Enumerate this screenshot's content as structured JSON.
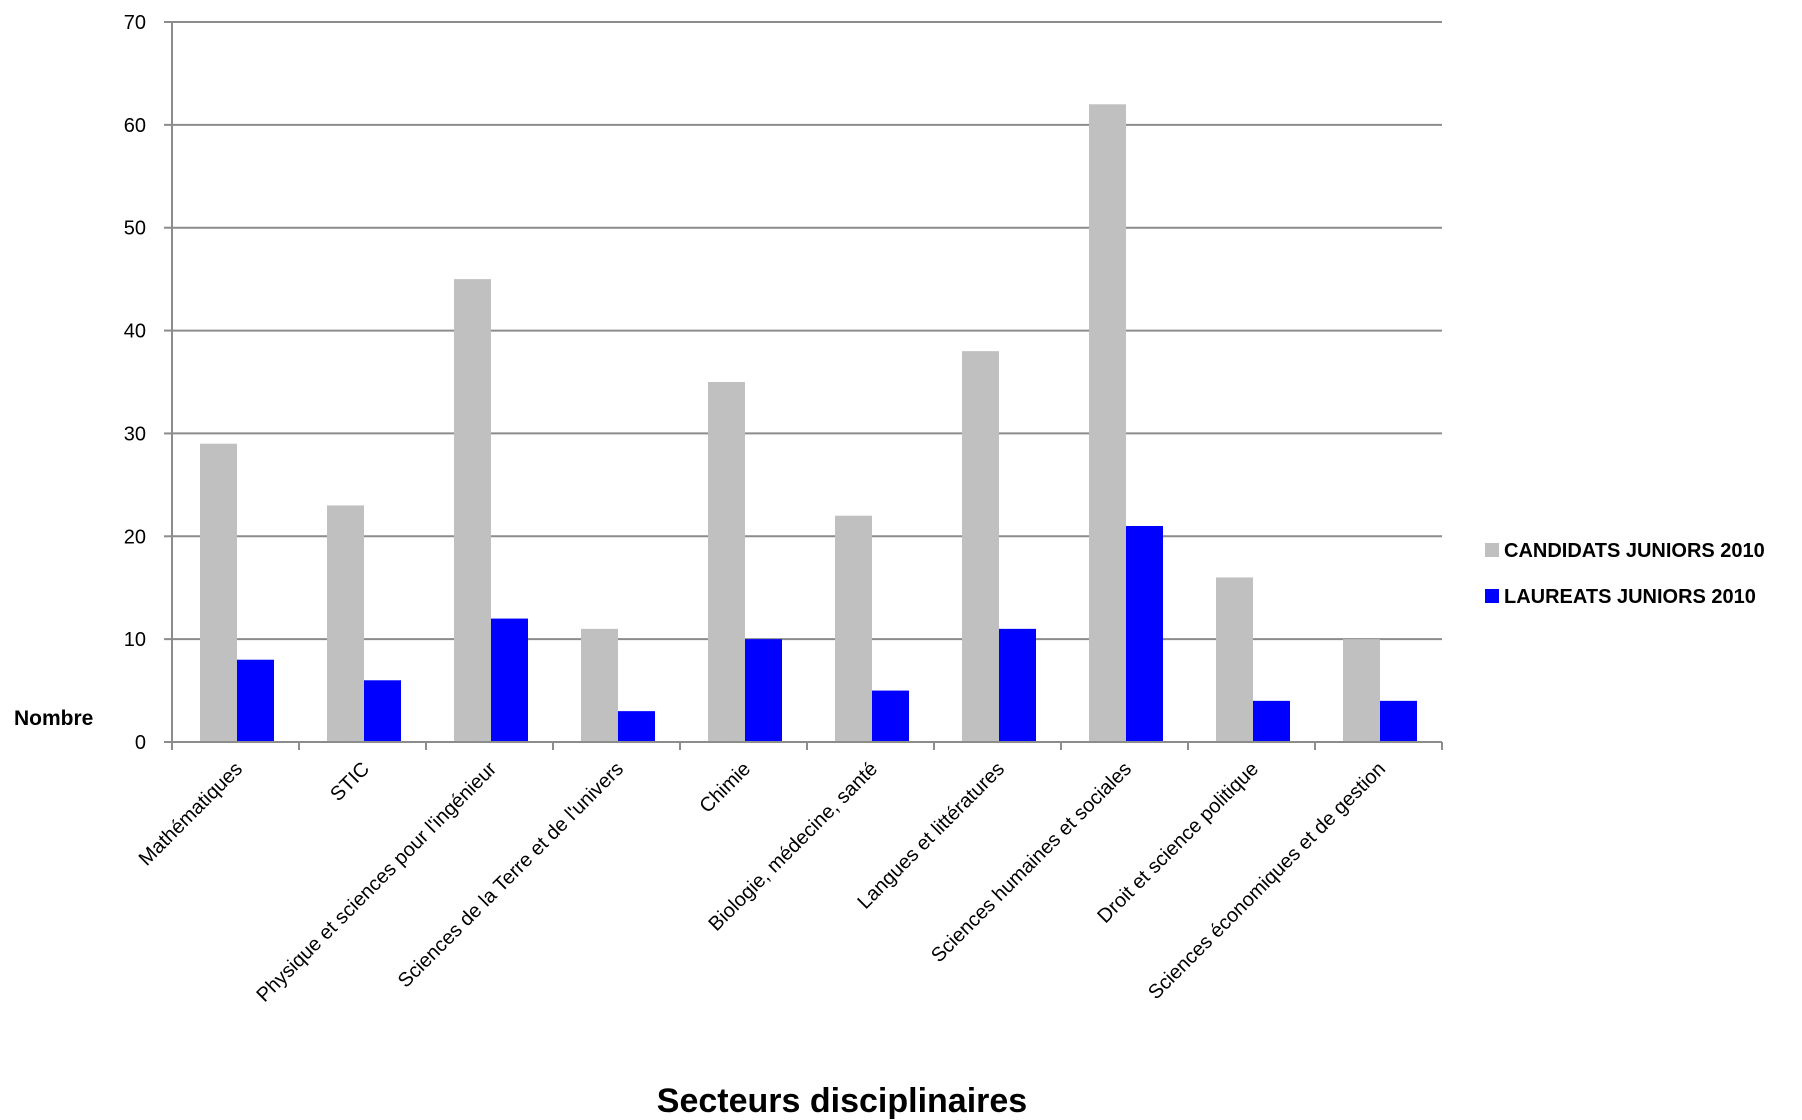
{
  "chart_data": {
    "type": "bar",
    "categories": [
      "Mathématiques",
      "STIC",
      "Physique et sciences pour l'ingénieur",
      "Sciences de la Terre et de l'univers",
      "Chimie",
      "Biologie, médecine, santé",
      "Langues et littératures",
      "Sciences humaines et sociales",
      "Droit et science politique",
      "Sciences économiques et de gestion"
    ],
    "series": [
      {
        "name": "CANDIDATS JUNIORS 2010",
        "color": "#c0c0c0",
        "values": [
          29,
          23,
          45,
          11,
          35,
          22,
          38,
          62,
          16,
          10
        ]
      },
      {
        "name": "LAUREATS JUNIORS 2010",
        "color": "#0000ff",
        "values": [
          8,
          6,
          12,
          3,
          10,
          5,
          11,
          21,
          4,
          4
        ]
      }
    ],
    "xlabel": "Secteurs disciplinaires",
    "ylabel": "Nombre",
    "ylim": [
      0,
      70
    ],
    "yticks": [
      0,
      10,
      20,
      30,
      40,
      50,
      60,
      70
    ],
    "grid": true,
    "legend_position": "right"
  }
}
